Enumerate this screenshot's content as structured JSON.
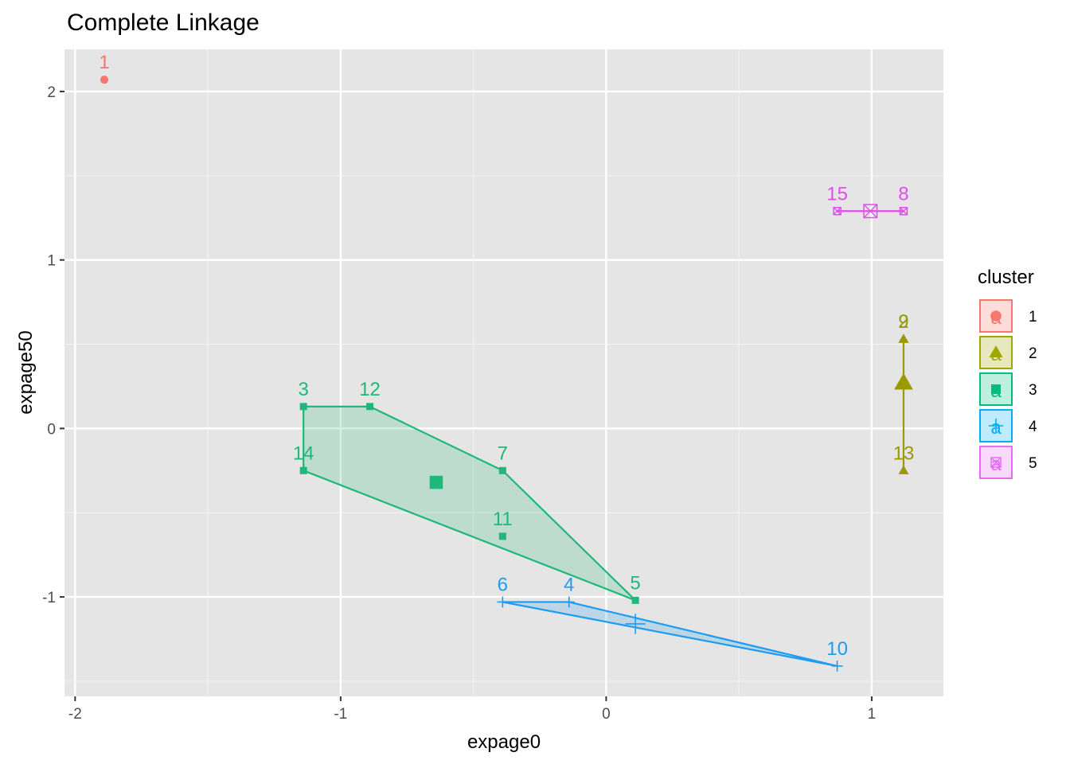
{
  "chart_data": {
    "type": "scatter",
    "title": "Complete Linkage",
    "xlabel": "expage0",
    "ylabel": "expage50",
    "xlim": [
      -2.04,
      1.27
    ],
    "ylim": [
      -1.59,
      2.25
    ],
    "x_ticks": [
      -2,
      -1,
      0,
      1
    ],
    "y_ticks": [
      -1,
      0,
      1,
      2
    ],
    "x_tick_labels": [
      "-2",
      "-1",
      "0",
      "1"
    ],
    "y_tick_labels": [
      "-1",
      "0",
      "1",
      "2"
    ],
    "grid": true,
    "panel_background": "#e5e5e5",
    "legend": {
      "title": "cluster",
      "position": "right",
      "entries": [
        {
          "label": "1",
          "color": "#F8766D",
          "shape": "circle"
        },
        {
          "label": "2",
          "color": "#A3A500",
          "shape": "triangle"
        },
        {
          "label": "3",
          "color": "#00BF7D",
          "shape": "square"
        },
        {
          "label": "4",
          "color": "#00B0F6",
          "shape": "plus"
        },
        {
          "label": "5",
          "color": "#E76BF3",
          "shape": "boxcross"
        }
      ]
    },
    "clusters": [
      {
        "id": "1",
        "color": "#F8766D",
        "shape": "circle",
        "points": [
          {
            "label": "1",
            "x": -1.89,
            "y": 2.07
          }
        ],
        "center": null,
        "hull": []
      },
      {
        "id": "2",
        "color": "#9A9A00",
        "shape": "triangle",
        "points": [
          {
            "label": "9",
            "x": 1.12,
            "y": 0.53
          },
          {
            "label": "2",
            "x": 1.12,
            "y": 0.53
          },
          {
            "label": "13",
            "x": 1.12,
            "y": -0.25
          }
        ],
        "center": {
          "x": 1.12,
          "y": 0.27
        },
        "hull": [
          {
            "x": 1.12,
            "y": 0.53
          },
          {
            "x": 1.12,
            "y": -0.25
          }
        ]
      },
      {
        "id": "3",
        "color": "#1DB87A",
        "shape": "square",
        "points": [
          {
            "label": "3",
            "x": -1.14,
            "y": 0.13
          },
          {
            "label": "12",
            "x": -0.89,
            "y": 0.13
          },
          {
            "label": "14",
            "x": -1.14,
            "y": -0.25
          },
          {
            "label": "7",
            "x": -0.39,
            "y": -0.25
          },
          {
            "label": "11",
            "x": -0.39,
            "y": -0.64
          },
          {
            "label": "5",
            "x": 0.11,
            "y": -1.02
          }
        ],
        "center": {
          "x": -0.64,
          "y": -0.32
        },
        "hull": [
          {
            "x": -1.14,
            "y": 0.13
          },
          {
            "x": -0.89,
            "y": 0.13
          },
          {
            "x": -0.39,
            "y": -0.25
          },
          {
            "x": 0.11,
            "y": -1.02
          },
          {
            "x": -1.14,
            "y": -0.25
          }
        ]
      },
      {
        "id": "4",
        "color": "#1E9CF0",
        "shape": "plus",
        "points": [
          {
            "label": "6",
            "x": -0.39,
            "y": -1.03
          },
          {
            "label": "4",
            "x": -0.14,
            "y": -1.03
          },
          {
            "label": "10",
            "x": 0.87,
            "y": -1.41
          }
        ],
        "center": {
          "x": 0.11,
          "y": -1.16
        },
        "hull": [
          {
            "x": -0.39,
            "y": -1.03
          },
          {
            "x": -0.14,
            "y": -1.03
          },
          {
            "x": 0.87,
            "y": -1.41
          }
        ]
      },
      {
        "id": "5",
        "color": "#E14DEC",
        "shape": "boxcross",
        "points": [
          {
            "label": "15",
            "x": 0.87,
            "y": 1.29
          },
          {
            "label": "8",
            "x": 1.12,
            "y": 1.29
          }
        ],
        "center": {
          "x": 0.995,
          "y": 1.29
        },
        "hull": [
          {
            "x": 0.87,
            "y": 1.29
          },
          {
            "x": 1.12,
            "y": 1.29
          }
        ]
      }
    ]
  }
}
